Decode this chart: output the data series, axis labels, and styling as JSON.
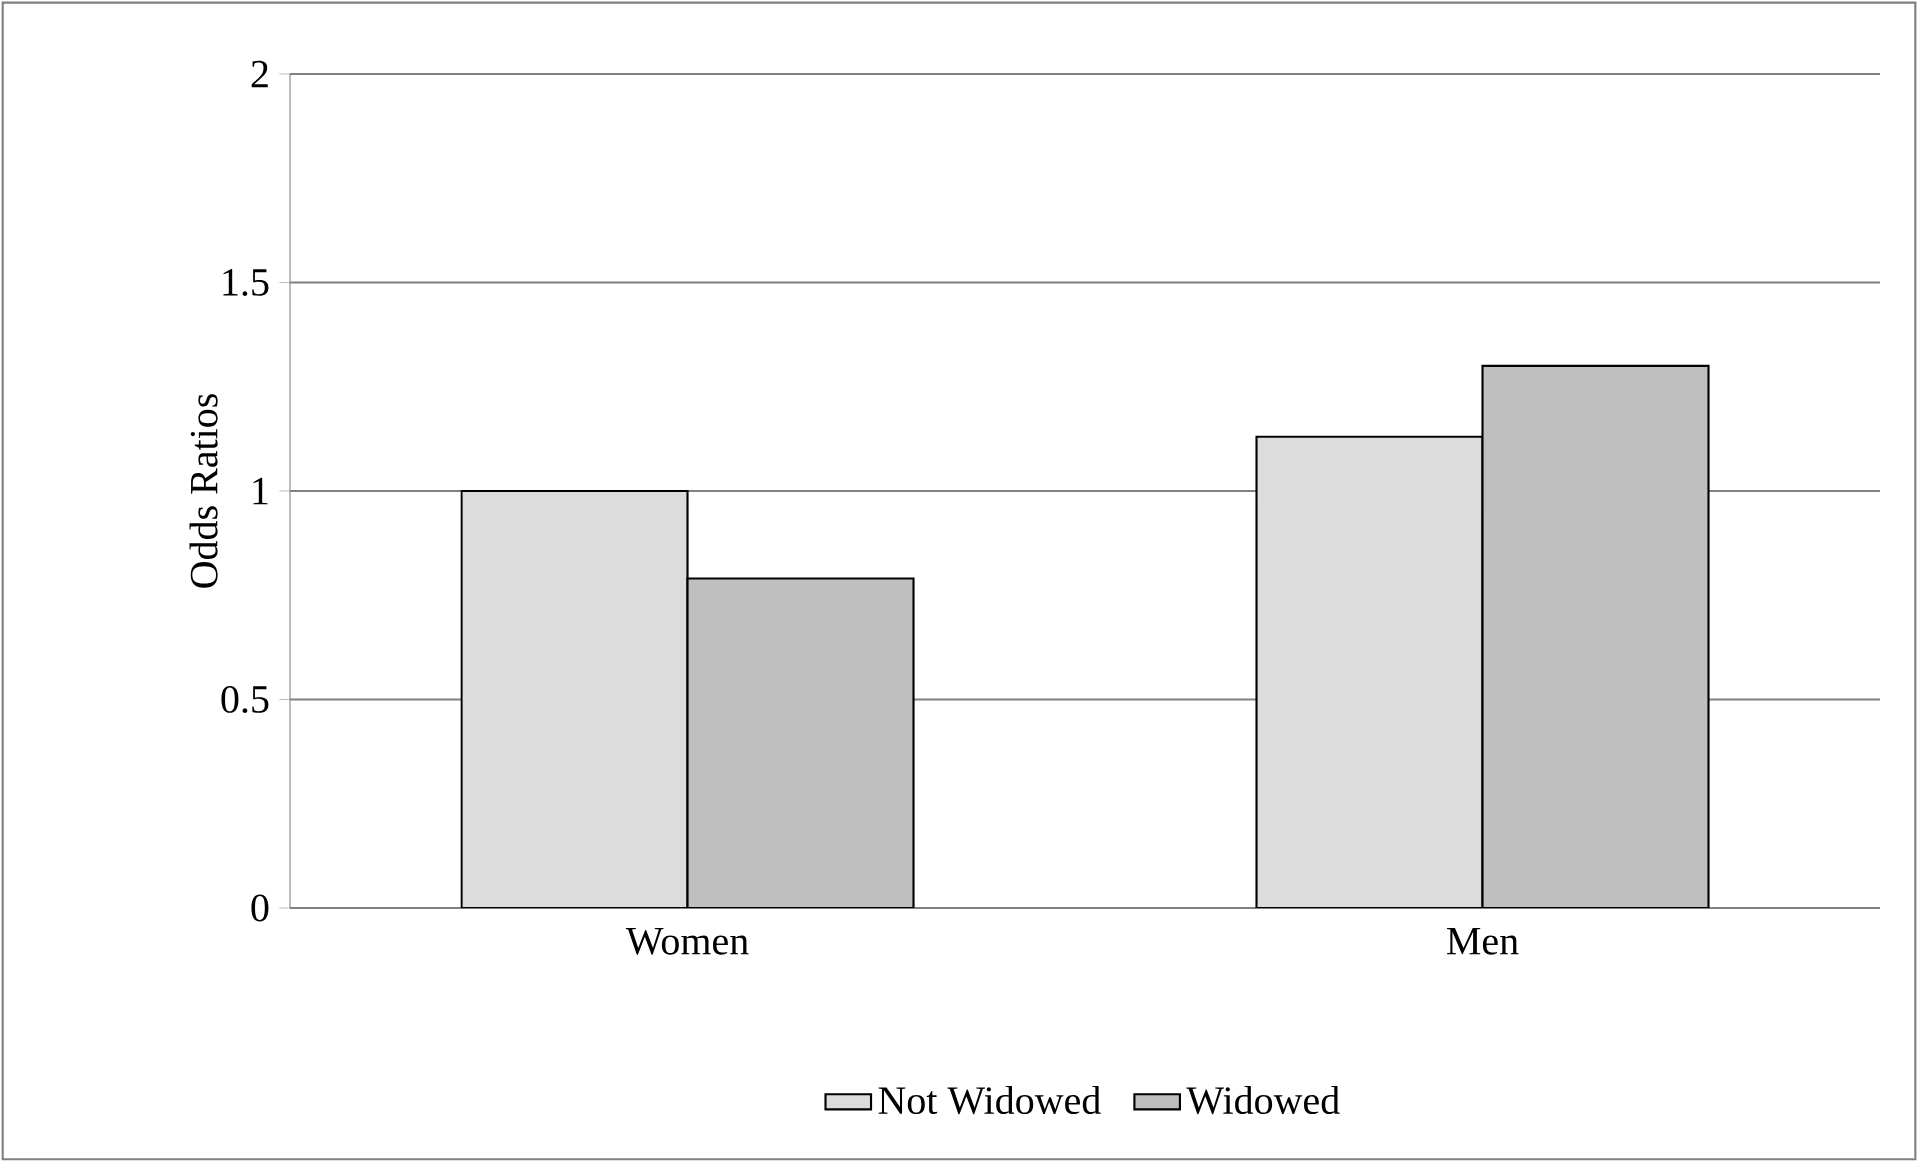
{
  "chart_data": {
    "type": "bar",
    "ylabel": "Odds Ratios",
    "categories": [
      "Women",
      "Men"
    ],
    "series": [
      {
        "name": "Not Widowed",
        "color": "#dcdcdc",
        "values": [
          1.0,
          1.13
        ]
      },
      {
        "name": "Widowed",
        "color": "#bfbfbf",
        "values": [
          0.79,
          1.3
        ]
      }
    ],
    "ylim": [
      0,
      2
    ],
    "yticks": [
      0,
      0.5,
      1,
      1.5,
      2
    ],
    "grid": "y",
    "legend": "bottom"
  }
}
